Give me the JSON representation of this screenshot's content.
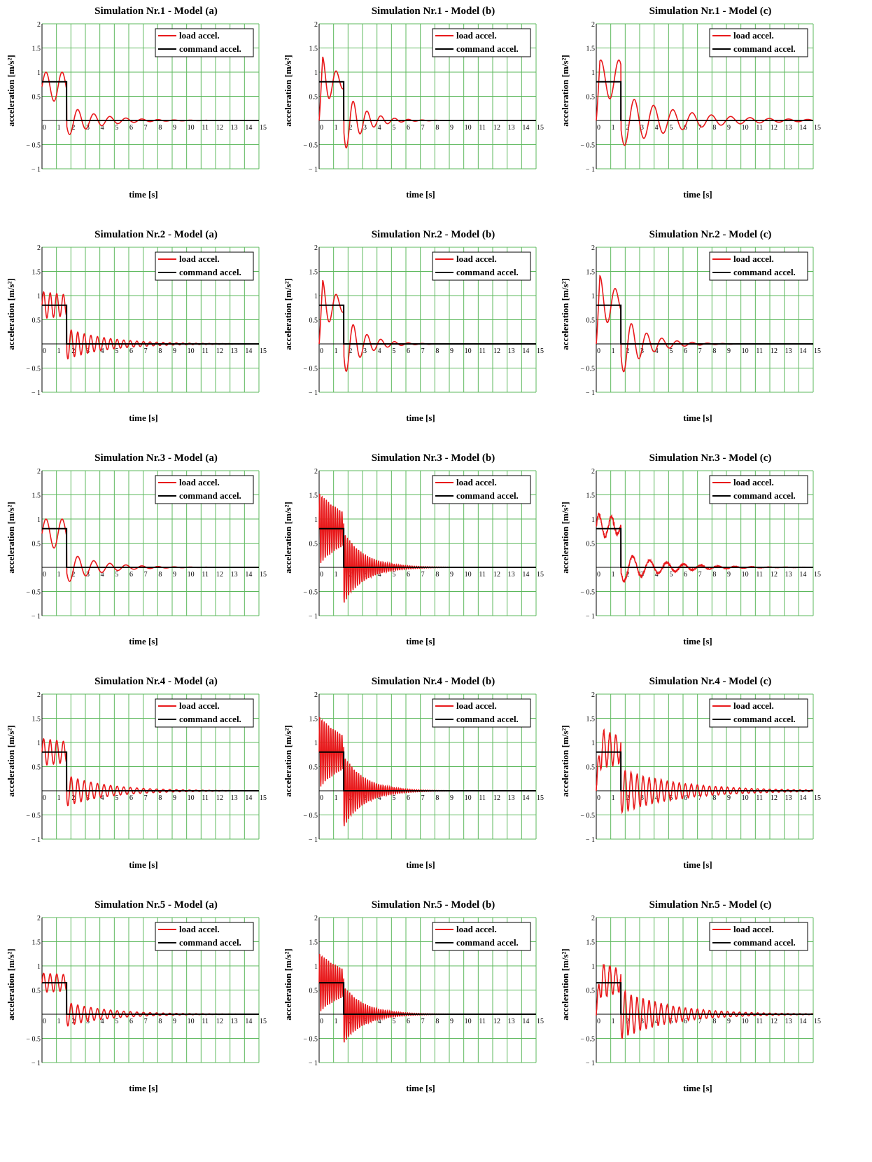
{
  "chart_data": [
    {
      "type": "line",
      "title": "Simulation Nr.1 - Model (a)",
      "xlabel": "time [s]",
      "ylabel": "acceleration [m/s²]",
      "xlim": [
        0,
        15
      ],
      "ylim": [
        -1,
        2
      ],
      "legend": "top-right",
      "grid": true,
      "series": [
        {
          "name": "load accel.",
          "color": "#e8191b",
          "profile": {
            "offset": 0.7,
            "amp1": 0.3,
            "freq1": 0.9,
            "decay1": 0.0,
            "amp2": 0.32,
            "freq2": 0.9,
            "decay2": 0.45,
            "noise": 0.0
          }
        },
        {
          "name": "command accel.",
          "color": "#000000",
          "level": 0.8,
          "t_end": 1.7
        }
      ]
    },
    {
      "type": "line",
      "title": "Simulation Nr.1 - Model (b)",
      "xlabel": "time [s]",
      "ylabel": "acceleration [m/s²]",
      "xlim": [
        0,
        15
      ],
      "ylim": [
        -1,
        2
      ],
      "legend": "top-right",
      "grid": true,
      "series": [
        {
          "name": "load accel.",
          "color": "#e8191b",
          "profile": {
            "offset": 0.8,
            "amp1": 0.65,
            "freq1": 1.05,
            "decay1": 0.9,
            "amp2": 0.65,
            "freq2": 1.05,
            "decay2": 0.75,
            "noise": 0.0,
            "startzero": true
          }
        },
        {
          "name": "command accel.",
          "color": "#000000",
          "level": 0.8,
          "t_end": 1.7
        }
      ]
    },
    {
      "type": "line",
      "title": "Simulation Nr.1 - Model (c)",
      "xlabel": "time [s]",
      "ylabel": "acceleration [m/s²]",
      "xlim": [
        0,
        15
      ],
      "ylim": [
        -1,
        2
      ],
      "legend": "top-right",
      "grid": true,
      "series": [
        {
          "name": "load accel.",
          "color": "#e8191b",
          "profile": {
            "offset": 0.85,
            "amp1": 0.4,
            "freq1": 0.8,
            "decay1": 0.0,
            "amp2": 0.55,
            "freq2": 0.75,
            "decay2": 0.25,
            "noise": 0.0,
            "startzero": true
          }
        },
        {
          "name": "command accel.",
          "color": "#000000",
          "level": 0.8,
          "t_end": 1.7
        }
      ]
    },
    {
      "type": "line",
      "title": "Simulation Nr.2 - Model (a)",
      "xlabel": "time [s]",
      "ylabel": "acceleration [m/s²]",
      "xlim": [
        0,
        15
      ],
      "ylim": [
        -1,
        2
      ],
      "legend": "top-right",
      "grid": true,
      "series": [
        {
          "name": "load accel.",
          "color": "#e8191b",
          "profile": {
            "offset": 0.8,
            "amp1": 0.28,
            "freq1": 2.2,
            "decay1": 0.15,
            "amp2": 0.32,
            "freq2": 2.2,
            "decay2": 0.35,
            "noise": 0.0
          }
        },
        {
          "name": "command accel.",
          "color": "#000000",
          "level": 0.8,
          "t_end": 1.7
        }
      ]
    },
    {
      "type": "line",
      "title": "Simulation Nr.2 - Model (b)",
      "xlabel": "time [s]",
      "ylabel": "acceleration [m/s²]",
      "xlim": [
        0,
        15
      ],
      "ylim": [
        -1,
        2
      ],
      "legend": "top-right",
      "grid": true,
      "series": [
        {
          "name": "load accel.",
          "color": "#e8191b",
          "profile": {
            "offset": 0.8,
            "amp1": 0.65,
            "freq1": 1.05,
            "decay1": 0.9,
            "amp2": 0.65,
            "freq2": 1.05,
            "decay2": 0.75,
            "noise": 0.0,
            "startzero": true
          }
        },
        {
          "name": "command accel.",
          "color": "#000000",
          "level": 0.8,
          "t_end": 1.7
        }
      ]
    },
    {
      "type": "line",
      "title": "Simulation Nr.2 - Model (c)",
      "xlabel": "time [s]",
      "ylabel": "acceleration [m/s²]",
      "xlim": [
        0,
        15
      ],
      "ylim": [
        -1,
        2
      ],
      "legend": "top-right",
      "grid": true,
      "series": [
        {
          "name": "load accel.",
          "color": "#e8191b",
          "profile": {
            "offset": 0.85,
            "amp1": 0.65,
            "freq1": 0.95,
            "decay1": 0.6,
            "amp2": 0.65,
            "freq2": 0.95,
            "decay2": 0.6,
            "noise": 0.0,
            "startzero": true
          }
        },
        {
          "name": "command accel.",
          "color": "#000000",
          "level": 0.8,
          "t_end": 1.7
        }
      ]
    },
    {
      "type": "line",
      "title": "Simulation Nr.3 - Model (a)",
      "xlabel": "time [s]",
      "ylabel": "acceleration [m/s²]",
      "xlim": [
        0,
        15
      ],
      "ylim": [
        -1,
        2
      ],
      "legend": "top-right",
      "grid": true,
      "series": [
        {
          "name": "load accel.",
          "color": "#e8191b",
          "profile": {
            "offset": 0.7,
            "amp1": 0.3,
            "freq1": 0.9,
            "decay1": 0.0,
            "amp2": 0.32,
            "freq2": 0.9,
            "decay2": 0.45,
            "noise": 0.0
          }
        },
        {
          "name": "command accel.",
          "color": "#000000",
          "level": 0.8,
          "t_end": 1.7
        }
      ]
    },
    {
      "type": "line",
      "title": "Simulation Nr.3 - Model (b)",
      "xlabel": "time [s]",
      "ylabel": "acceleration [m/s²]",
      "xlim": [
        0,
        15
      ],
      "ylim": [
        -1,
        2
      ],
      "legend": "top-right",
      "grid": true,
      "series": [
        {
          "name": "load accel.",
          "color": "#e8191b",
          "profile": {
            "offset": 0.8,
            "amp1": 0.75,
            "freq1": 6.5,
            "decay1": 0.45,
            "amp2": 0.75,
            "freq2": 6.5,
            "decay2": 0.7,
            "noise": 0.0
          }
        },
        {
          "name": "command accel.",
          "color": "#000000",
          "level": 0.8,
          "t_end": 1.7
        }
      ]
    },
    {
      "type": "line",
      "title": "Simulation Nr.3 - Model (c)",
      "xlabel": "time [s]",
      "ylabel": "acceleration [m/s²]",
      "xlim": [
        0,
        15
      ],
      "ylim": [
        -1,
        2
      ],
      "legend": "top-right",
      "grid": true,
      "series": [
        {
          "name": "load accel.",
          "color": "#e8191b",
          "profile": {
            "offset": 0.85,
            "amp1": 0.25,
            "freq1": 1.2,
            "decay1": 0.3,
            "amp2": 0.3,
            "freq2": 0.85,
            "decay2": 0.35,
            "noise": 0.12
          }
        },
        {
          "name": "command accel.",
          "color": "#000000",
          "level": 0.8,
          "t_end": 1.7
        }
      ]
    },
    {
      "type": "line",
      "title": "Simulation Nr.4 - Model (a)",
      "xlabel": "time [s]",
      "ylabel": "acceleration [m/s²]",
      "xlim": [
        0,
        15
      ],
      "ylim": [
        -1,
        2
      ],
      "legend": "top-right",
      "grid": true,
      "series": [
        {
          "name": "load accel.",
          "color": "#e8191b",
          "profile": {
            "offset": 0.8,
            "amp1": 0.28,
            "freq1": 2.2,
            "decay1": 0.15,
            "amp2": 0.32,
            "freq2": 2.2,
            "decay2": 0.35,
            "noise": 0.0
          }
        },
        {
          "name": "command accel.",
          "color": "#000000",
          "level": 0.8,
          "t_end": 1.7
        }
      ]
    },
    {
      "type": "line",
      "title": "Simulation Nr.4 - Model (b)",
      "xlabel": "time [s]",
      "ylabel": "acceleration [m/s²]",
      "xlim": [
        0,
        15
      ],
      "ylim": [
        -1,
        2
      ],
      "legend": "top-right",
      "grid": true,
      "series": [
        {
          "name": "load accel.",
          "color": "#e8191b",
          "profile": {
            "offset": 0.8,
            "amp1": 0.75,
            "freq1": 6.5,
            "decay1": 0.45,
            "amp2": 0.75,
            "freq2": 6.5,
            "decay2": 0.7,
            "noise": 0.0
          }
        },
        {
          "name": "command accel.",
          "color": "#000000",
          "level": 0.8,
          "t_end": 1.7
        }
      ]
    },
    {
      "type": "line",
      "title": "Simulation Nr.4 - Model (c)",
      "xlabel": "time [s]",
      "ylabel": "acceleration [m/s²]",
      "xlim": [
        0,
        15
      ],
      "ylim": [
        -1,
        2
      ],
      "legend": "top-right",
      "grid": true,
      "series": [
        {
          "name": "load accel.",
          "color": "#e8191b",
          "profile": {
            "offset": 0.85,
            "amp1": 0.45,
            "freq1": 2.4,
            "decay1": 0.3,
            "amp2": 0.45,
            "freq2": 2.4,
            "decay2": 0.25,
            "noise": 0.08,
            "startzero": true
          }
        },
        {
          "name": "command accel.",
          "color": "#000000",
          "level": 0.8,
          "t_end": 1.7
        }
      ]
    },
    {
      "type": "line",
      "title": "Simulation Nr.5 - Model (a)",
      "xlabel": "time [s]",
      "ylabel": "acceleration [m/s²]",
      "xlim": [
        0,
        15
      ],
      "ylim": [
        -1,
        2
      ],
      "legend": "top-right",
      "grid": true,
      "series": [
        {
          "name": "load accel.",
          "color": "#e8191b",
          "profile": {
            "offset": 0.65,
            "amp1": 0.2,
            "freq1": 2.2,
            "decay1": 0.1,
            "amp2": 0.25,
            "freq2": 2.2,
            "decay2": 0.35,
            "noise": 0.0
          }
        },
        {
          "name": "command accel.",
          "color": "#000000",
          "level": 0.65,
          "t_end": 1.7
        }
      ]
    },
    {
      "type": "line",
      "title": "Simulation Nr.5 - Model (b)",
      "xlabel": "time [s]",
      "ylabel": "acceleration [m/s²]",
      "xlim": [
        0,
        15
      ],
      "ylim": [
        -1,
        2
      ],
      "legend": "top-right",
      "grid": true,
      "series": [
        {
          "name": "load accel.",
          "color": "#e8191b",
          "profile": {
            "offset": 0.65,
            "amp1": 0.62,
            "freq1": 6.5,
            "decay1": 0.45,
            "amp2": 0.6,
            "freq2": 6.5,
            "decay2": 0.7,
            "noise": 0.0
          }
        },
        {
          "name": "command accel.",
          "color": "#000000",
          "level": 0.65,
          "t_end": 1.7
        }
      ]
    },
    {
      "type": "line",
      "title": "Simulation Nr.5 - Model (c)",
      "xlabel": "time [s]",
      "ylabel": "acceleration [m/s²]",
      "xlim": [
        0,
        15
      ],
      "ylim": [
        -1,
        2
      ],
      "legend": "top-right",
      "grid": true,
      "series": [
        {
          "name": "load accel.",
          "color": "#e8191b",
          "profile": {
            "offset": 0.7,
            "amp1": 0.4,
            "freq1": 2.4,
            "decay1": 0.3,
            "amp2": 0.5,
            "freq2": 2.4,
            "decay2": 0.3,
            "noise": 0.08,
            "startzero": true
          }
        },
        {
          "name": "command accel.",
          "color": "#000000",
          "level": 0.65,
          "t_end": 1.7
        }
      ]
    }
  ],
  "ticks": {
    "x": [
      "0",
      "1",
      "2",
      "3",
      "4",
      "5",
      "6",
      "7",
      "8",
      "9",
      "10",
      "11",
      "12",
      "13",
      "14",
      "15"
    ],
    "y": [
      "2",
      "1.5",
      "1",
      "0.5",
      "",
      "− 0.5",
      "− 1"
    ]
  }
}
